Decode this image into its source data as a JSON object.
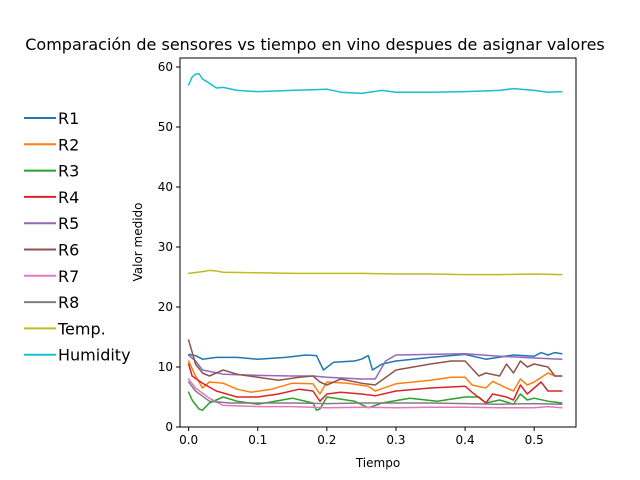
{
  "chart_data": {
    "type": "line",
    "title": "Comparación de sensores vs tiempo en vino despues de asignar valores",
    "xlabel": "Tiempo",
    "ylabel": "Valor medido",
    "xlim": [
      -0.0125,
      0.5605
    ],
    "ylim": [
      0,
      61.5
    ],
    "xticks": [
      0.0,
      0.1,
      0.2,
      0.3,
      0.4,
      0.5
    ],
    "xtick_labels": [
      "0.0",
      "0.1",
      "0.2",
      "0.3",
      "0.4",
      "0.5"
    ],
    "yticks": [
      0,
      10,
      20,
      30,
      40,
      50,
      60
    ],
    "ytick_labels": [
      "0",
      "10",
      "20",
      "30",
      "40",
      "50",
      "60"
    ],
    "grid": false,
    "legend_position": "left-outside",
    "series": [
      {
        "name": "R1",
        "color": "#1f77b4",
        "points": [
          [
            0,
            12.1
          ],
          [
            0.01,
            11.9
          ],
          [
            0.02,
            11.3
          ],
          [
            0.04,
            11.6
          ],
          [
            0.07,
            11.6
          ],
          [
            0.1,
            11.3
          ],
          [
            0.14,
            11.6
          ],
          [
            0.17,
            12.0
          ],
          [
            0.185,
            11.9
          ],
          [
            0.195,
            9.5
          ],
          [
            0.21,
            10.8
          ],
          [
            0.24,
            11.0
          ],
          [
            0.25,
            11.3
          ],
          [
            0.26,
            11.9
          ],
          [
            0.266,
            9.5
          ],
          [
            0.28,
            10.5
          ],
          [
            0.3,
            11.0
          ],
          [
            0.35,
            11.6
          ],
          [
            0.4,
            12.1
          ],
          [
            0.43,
            11.3
          ],
          [
            0.47,
            12.0
          ],
          [
            0.5,
            11.8
          ],
          [
            0.51,
            12.4
          ],
          [
            0.52,
            12.0
          ],
          [
            0.53,
            12.4
          ],
          [
            0.54,
            12.2
          ]
        ]
      },
      {
        "name": "R2",
        "color": "#ff7f0e",
        "points": [
          [
            0,
            11.0
          ],
          [
            0.01,
            8.5
          ],
          [
            0.02,
            6.5
          ],
          [
            0.03,
            7.5
          ],
          [
            0.05,
            7.3
          ],
          [
            0.07,
            6.3
          ],
          [
            0.09,
            5.8
          ],
          [
            0.12,
            6.3
          ],
          [
            0.15,
            7.3
          ],
          [
            0.18,
            7.2
          ],
          [
            0.19,
            5.5
          ],
          [
            0.2,
            7.5
          ],
          [
            0.23,
            7.3
          ],
          [
            0.26,
            6.8
          ],
          [
            0.27,
            6.0
          ],
          [
            0.3,
            7.2
          ],
          [
            0.35,
            7.8
          ],
          [
            0.38,
            8.3
          ],
          [
            0.4,
            8.3
          ],
          [
            0.41,
            7.0
          ],
          [
            0.43,
            6.5
          ],
          [
            0.44,
            7.6
          ],
          [
            0.46,
            6.5
          ],
          [
            0.47,
            6.0
          ],
          [
            0.48,
            8.0
          ],
          [
            0.49,
            7.0
          ],
          [
            0.5,
            7.5
          ],
          [
            0.52,
            9.0
          ],
          [
            0.53,
            8.5
          ],
          [
            0.54,
            8.5
          ]
        ]
      },
      {
        "name": "R3",
        "color": "#2ca02c",
        "points": [
          [
            0,
            5.8
          ],
          [
            0.005,
            4.5
          ],
          [
            0.015,
            3.0
          ],
          [
            0.02,
            2.8
          ],
          [
            0.03,
            4.0
          ],
          [
            0.05,
            5.0
          ],
          [
            0.07,
            4.3
          ],
          [
            0.1,
            3.8
          ],
          [
            0.15,
            4.8
          ],
          [
            0.18,
            4.0
          ],
          [
            0.185,
            2.8
          ],
          [
            0.19,
            3.0
          ],
          [
            0.2,
            5.0
          ],
          [
            0.24,
            4.3
          ],
          [
            0.26,
            3.2
          ],
          [
            0.28,
            4.0
          ],
          [
            0.32,
            4.8
          ],
          [
            0.36,
            4.3
          ],
          [
            0.4,
            5.0
          ],
          [
            0.42,
            5.0
          ],
          [
            0.43,
            4.0
          ],
          [
            0.45,
            4.5
          ],
          [
            0.47,
            3.8
          ],
          [
            0.48,
            5.5
          ],
          [
            0.49,
            4.5
          ],
          [
            0.5,
            4.8
          ],
          [
            0.52,
            4.3
          ],
          [
            0.54,
            4.0
          ]
        ]
      },
      {
        "name": "R4",
        "color": "#d62728",
        "points": [
          [
            0,
            10.5
          ],
          [
            0.005,
            8.5
          ],
          [
            0.02,
            7.3
          ],
          [
            0.04,
            6.0
          ],
          [
            0.07,
            5.0
          ],
          [
            0.1,
            5.0
          ],
          [
            0.13,
            5.5
          ],
          [
            0.16,
            6.3
          ],
          [
            0.18,
            6.0
          ],
          [
            0.19,
            4.3
          ],
          [
            0.2,
            5.5
          ],
          [
            0.22,
            5.8
          ],
          [
            0.25,
            5.5
          ],
          [
            0.27,
            5.2
          ],
          [
            0.3,
            6.0
          ],
          [
            0.35,
            6.5
          ],
          [
            0.4,
            6.8
          ],
          [
            0.41,
            5.8
          ],
          [
            0.43,
            4.0
          ],
          [
            0.44,
            5.5
          ],
          [
            0.46,
            5.0
          ],
          [
            0.47,
            4.5
          ],
          [
            0.48,
            7.0
          ],
          [
            0.49,
            5.5
          ],
          [
            0.5,
            6.5
          ],
          [
            0.51,
            7.5
          ],
          [
            0.52,
            6.0
          ],
          [
            0.53,
            6.0
          ],
          [
            0.54,
            6.0
          ]
        ]
      },
      {
        "name": "R5",
        "color": "#9467bd",
        "points": [
          [
            0,
            12.0
          ],
          [
            0.01,
            11.0
          ],
          [
            0.02,
            9.5
          ],
          [
            0.05,
            8.8
          ],
          [
            0.1,
            8.6
          ],
          [
            0.15,
            8.5
          ],
          [
            0.18,
            8.5
          ],
          [
            0.2,
            8.3
          ],
          [
            0.25,
            8.0
          ],
          [
            0.27,
            8.0
          ],
          [
            0.285,
            11.0
          ],
          [
            0.3,
            12.0
          ],
          [
            0.4,
            12.2
          ],
          [
            0.45,
            11.8
          ],
          [
            0.5,
            11.5
          ],
          [
            0.54,
            11.3
          ]
        ]
      },
      {
        "name": "R6",
        "color": "#8c564b",
        "points": [
          [
            0,
            14.5
          ],
          [
            0.005,
            12.5
          ],
          [
            0.01,
            10.5
          ],
          [
            0.02,
            9.0
          ],
          [
            0.03,
            8.5
          ],
          [
            0.05,
            9.5
          ],
          [
            0.07,
            8.8
          ],
          [
            0.1,
            8.3
          ],
          [
            0.13,
            7.8
          ],
          [
            0.16,
            8.3
          ],
          [
            0.18,
            8.5
          ],
          [
            0.19,
            7.5
          ],
          [
            0.2,
            7.0
          ],
          [
            0.22,
            8.0
          ],
          [
            0.25,
            7.3
          ],
          [
            0.27,
            7.0
          ],
          [
            0.3,
            9.5
          ],
          [
            0.35,
            10.5
          ],
          [
            0.38,
            11.0
          ],
          [
            0.4,
            11.0
          ],
          [
            0.42,
            8.5
          ],
          [
            0.43,
            9.0
          ],
          [
            0.45,
            8.5
          ],
          [
            0.46,
            10.5
          ],
          [
            0.47,
            9.0
          ],
          [
            0.48,
            11.0
          ],
          [
            0.49,
            10.0
          ],
          [
            0.5,
            10.5
          ],
          [
            0.52,
            10.0
          ],
          [
            0.53,
            8.5
          ],
          [
            0.54,
            8.5
          ]
        ]
      },
      {
        "name": "R7",
        "color": "#e377c2",
        "points": [
          [
            0,
            8.0
          ],
          [
            0.01,
            6.5
          ],
          [
            0.03,
            4.8
          ],
          [
            0.05,
            3.6
          ],
          [
            0.1,
            3.4
          ],
          [
            0.15,
            3.4
          ],
          [
            0.2,
            3.2
          ],
          [
            0.25,
            3.3
          ],
          [
            0.3,
            3.2
          ],
          [
            0.35,
            3.3
          ],
          [
            0.4,
            3.3
          ],
          [
            0.45,
            3.2
          ],
          [
            0.5,
            3.2
          ],
          [
            0.52,
            3.4
          ],
          [
            0.54,
            3.2
          ]
        ]
      },
      {
        "name": "R8",
        "color": "#7f7f7f",
        "points": [
          [
            0,
            7.5
          ],
          [
            0.01,
            6.0
          ],
          [
            0.03,
            4.3
          ],
          [
            0.06,
            4.0
          ],
          [
            0.1,
            4.0
          ],
          [
            0.15,
            4.0
          ],
          [
            0.2,
            3.9
          ],
          [
            0.25,
            4.0
          ],
          [
            0.3,
            4.0
          ],
          [
            0.35,
            4.0
          ],
          [
            0.4,
            3.9
          ],
          [
            0.45,
            3.8
          ],
          [
            0.5,
            3.9
          ],
          [
            0.54,
            3.8
          ]
        ]
      },
      {
        "name": "Temp.",
        "color": "#bcbd22",
        "points": [
          [
            0,
            25.6
          ],
          [
            0.02,
            25.9
          ],
          [
            0.03,
            26.1
          ],
          [
            0.04,
            26.0
          ],
          [
            0.05,
            25.8
          ],
          [
            0.1,
            25.7
          ],
          [
            0.15,
            25.6
          ],
          [
            0.2,
            25.6
          ],
          [
            0.25,
            25.6
          ],
          [
            0.3,
            25.5
          ],
          [
            0.35,
            25.5
          ],
          [
            0.4,
            25.4
          ],
          [
            0.45,
            25.4
          ],
          [
            0.5,
            25.5
          ],
          [
            0.54,
            25.4
          ]
        ]
      },
      {
        "name": "Humidity",
        "color": "#17becf",
        "points": [
          [
            0,
            57.0
          ],
          [
            0.005,
            58.3
          ],
          [
            0.01,
            58.8
          ],
          [
            0.015,
            58.9
          ],
          [
            0.02,
            58.0
          ],
          [
            0.03,
            57.3
          ],
          [
            0.04,
            56.5
          ],
          [
            0.05,
            56.6
          ],
          [
            0.07,
            56.1
          ],
          [
            0.1,
            55.9
          ],
          [
            0.15,
            56.1
          ],
          [
            0.2,
            56.3
          ],
          [
            0.22,
            55.8
          ],
          [
            0.25,
            55.6
          ],
          [
            0.28,
            56.1
          ],
          [
            0.3,
            55.8
          ],
          [
            0.35,
            55.8
          ],
          [
            0.4,
            55.9
          ],
          [
            0.45,
            56.1
          ],
          [
            0.47,
            56.4
          ],
          [
            0.5,
            56.1
          ],
          [
            0.52,
            55.8
          ],
          [
            0.54,
            55.9
          ]
        ]
      }
    ]
  }
}
